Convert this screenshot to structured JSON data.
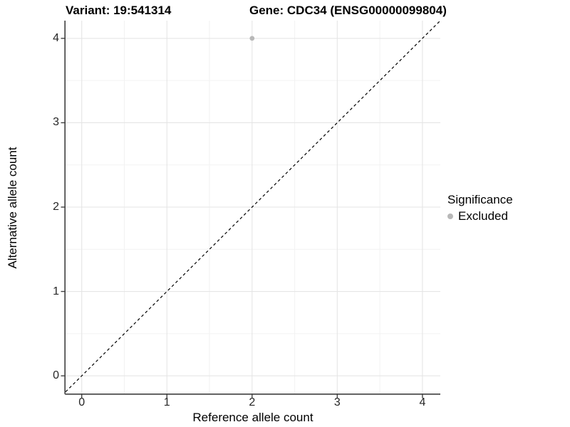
{
  "titles": {
    "variant": "Variant: 19:541314",
    "gene": "Gene: CDC34 (ENSG00000099804)"
  },
  "chart_data": {
    "type": "scatter",
    "title": "Variant: 19:541314 / Gene: CDC34 (ENSG00000099804)",
    "xlabel": "Reference allele count",
    "ylabel": "Alternative allele count",
    "xlim": [
      -0.19,
      4.21
    ],
    "ylim": [
      -0.21,
      4.21
    ],
    "xticks": [
      0,
      1,
      2,
      3,
      4
    ],
    "yticks": [
      0,
      1,
      2,
      3,
      4
    ],
    "grid": "major gridlines at integers, minor gridlines at halves",
    "points": [
      {
        "x": 2,
        "y": 4,
        "series": "Excluded"
      }
    ],
    "reference_line": {
      "type": "identity y=x",
      "style": "dashed",
      "color": "#000000"
    },
    "legend": {
      "title": "Significance",
      "position": "right",
      "entries": [
        {
          "label": "Excluded",
          "color": "#b8b8b8"
        }
      ]
    }
  },
  "colors": {
    "point_excluded": "#b8b8b8",
    "grid_major": "#e5e5e5",
    "grid_minor": "#f2f2f2",
    "axis_line": "#404040",
    "tick_mark": "#404040",
    "tick_text": "#262626"
  }
}
